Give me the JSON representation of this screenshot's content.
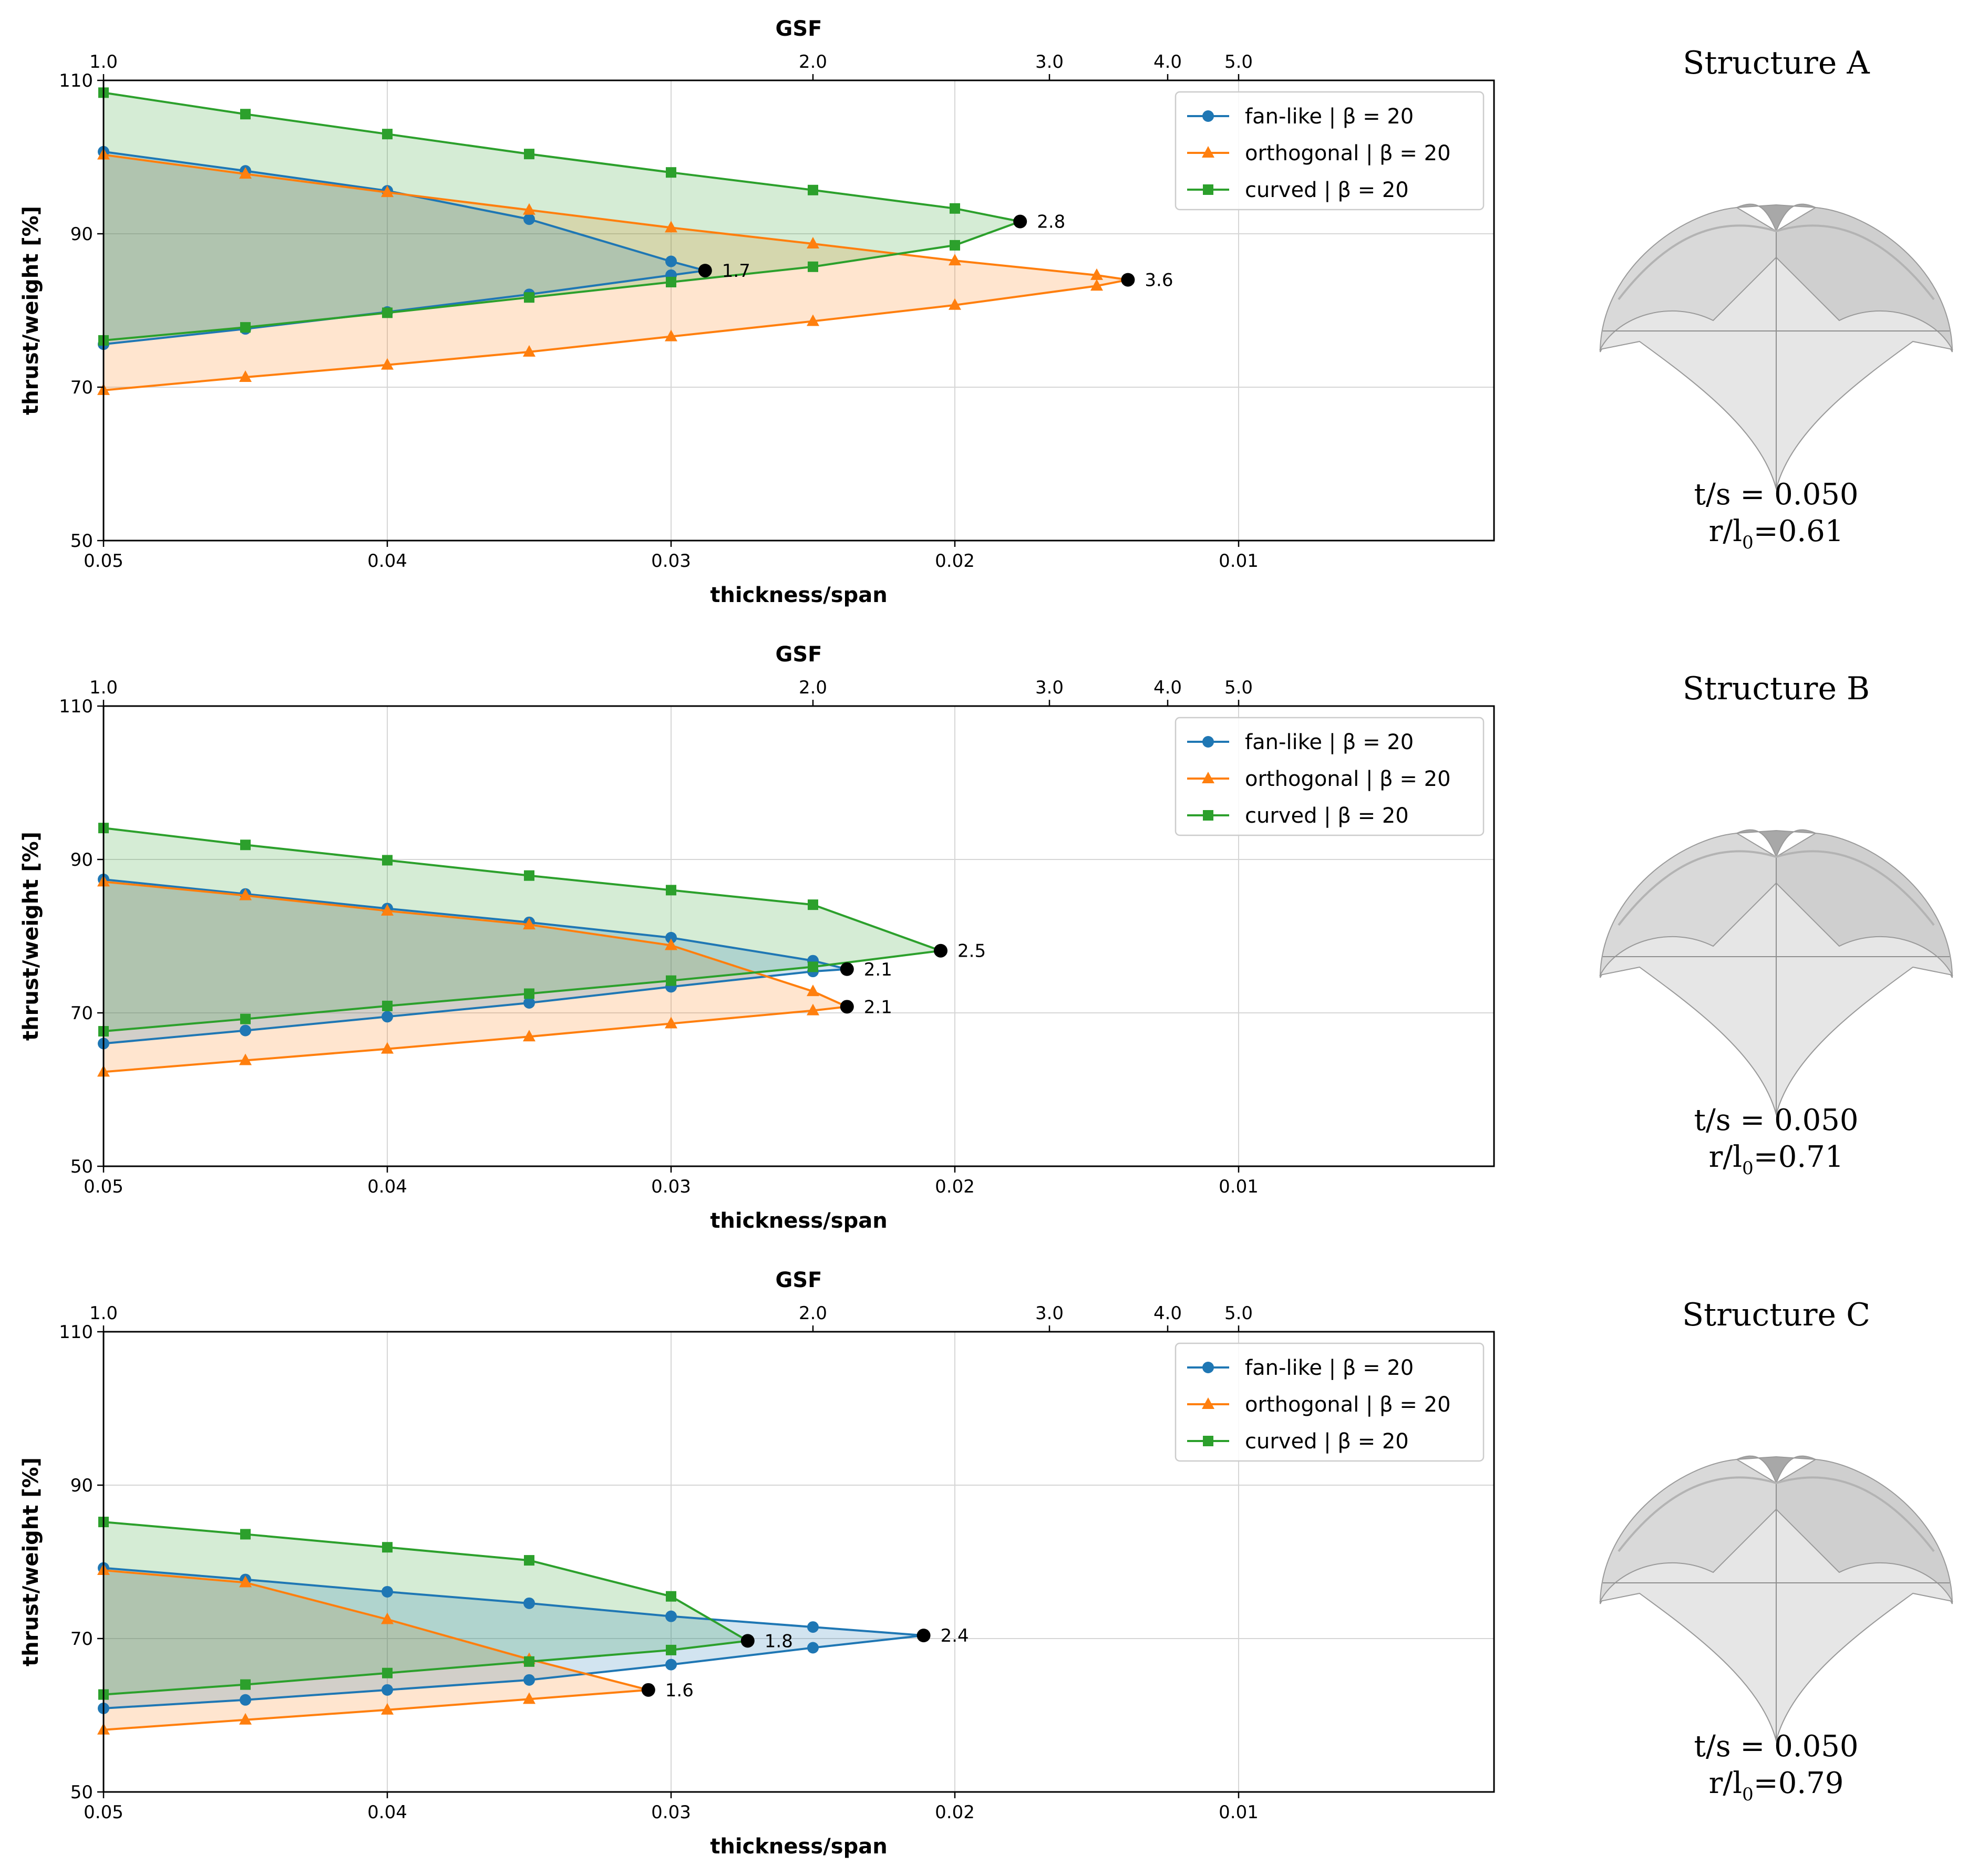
{
  "colors": {
    "fan": "#1f77b4",
    "orth": "#ff7f0e",
    "curved": "#2ca02c",
    "fan_fill": "#1f77b4",
    "orth_fill": "#ff7f0e",
    "curved_fill": "#2ca02c",
    "grid": "#d6d6d6",
    "axis": "#000000"
  },
  "chart_data": [
    {
      "type": "line",
      "title": "",
      "xlabel": "thickness/span",
      "ylabel": "thrust/weight [%]",
      "top_xlabel": "GSF",
      "xlim": [
        0.05,
        0.001
      ],
      "ylim": [
        50,
        110
      ],
      "grid": true,
      "legend": "top-right",
      "x_ticks": [
        0.05,
        0.04,
        0.03,
        0.02,
        0.01
      ],
      "x_tick_labels": [
        "0.05",
        "0.04",
        "0.03",
        "0.02",
        "0.01"
      ],
      "y_ticks": [
        50,
        70,
        90,
        110
      ],
      "y_tick_labels": [
        "50",
        "70",
        "90",
        "110"
      ],
      "top_ticks": [
        1.0,
        2.0,
        3.0,
        4.0,
        5.0
      ],
      "top_tick_labels": [
        "1.0",
        "2.0",
        "3.0",
        "4.0",
        "5.0"
      ],
      "series": [
        {
          "key": "fan",
          "name": "fan-like | β = 20",
          "marker": "circle",
          "upper": {
            "x": [
              0.05,
              0.045,
              0.04,
              0.035,
              0.03,
              0.0288
            ],
            "y": [
              100.7,
              98.2,
              95.6,
              91.9,
              86.4,
              85.2
            ]
          },
          "lower": {
            "x": [
              0.05,
              0.045,
              0.04,
              0.035,
              0.03,
              0.0288
            ],
            "y": [
              75.6,
              77.6,
              79.8,
              82.1,
              84.6,
              85.2
            ]
          },
          "limit": {
            "x": 0.0288,
            "y": 85.2,
            "label": "1.7"
          }
        },
        {
          "key": "orth",
          "name": "orthogonal | β = 20",
          "marker": "triangle",
          "upper": {
            "x": [
              0.05,
              0.045,
              0.04,
              0.035,
              0.03,
              0.025,
              0.02,
              0.015,
              0.0139
            ],
            "y": [
              100.3,
              97.8,
              95.4,
              93.1,
              90.8,
              88.7,
              86.5,
              84.6,
              84.0
            ]
          },
          "lower": {
            "x": [
              0.05,
              0.045,
              0.04,
              0.035,
              0.03,
              0.025,
              0.02,
              0.015,
              0.0139
            ],
            "y": [
              69.6,
              71.3,
              72.9,
              74.6,
              76.6,
              78.6,
              80.7,
              83.2,
              84.0
            ]
          },
          "limit": {
            "x": 0.0139,
            "y": 84.0,
            "label": "3.6"
          }
        },
        {
          "key": "curved",
          "name": "curved | β = 20",
          "marker": "square",
          "upper": {
            "x": [
              0.05,
              0.045,
              0.04,
              0.035,
              0.03,
              0.025,
              0.02,
              0.0177
            ],
            "y": [
              108.4,
              105.6,
              103.0,
              100.4,
              98.0,
              95.7,
              93.3,
              91.6
            ]
          },
          "lower": {
            "x": [
              0.05,
              0.045,
              0.04,
              0.035,
              0.03,
              0.025,
              0.02,
              0.0177
            ],
            "y": [
              76.1,
              77.8,
              79.7,
              81.7,
              83.7,
              85.7,
              88.5,
              91.6
            ]
          },
          "limit": {
            "x": 0.0177,
            "y": 91.6,
            "label": "2.8"
          }
        }
      ]
    },
    {
      "type": "line",
      "title": "",
      "xlabel": "thickness/span",
      "ylabel": "thrust/weight [%]",
      "top_xlabel": "GSF",
      "xlim": [
        0.05,
        0.001
      ],
      "ylim": [
        50,
        110
      ],
      "grid": true,
      "legend": "top-right",
      "x_ticks": [
        0.05,
        0.04,
        0.03,
        0.02,
        0.01
      ],
      "x_tick_labels": [
        "0.05",
        "0.04",
        "0.03",
        "0.02",
        "0.01"
      ],
      "y_ticks": [
        50,
        70,
        90,
        110
      ],
      "y_tick_labels": [
        "50",
        "70",
        "90",
        "110"
      ],
      "top_ticks": [
        1.0,
        2.0,
        3.0,
        4.0,
        5.0
      ],
      "top_tick_labels": [
        "1.0",
        "2.0",
        "3.0",
        "4.0",
        "5.0"
      ],
      "series": [
        {
          "key": "fan",
          "name": "fan-like | β = 20",
          "marker": "circle",
          "upper": {
            "x": [
              0.05,
              0.045,
              0.04,
              0.035,
              0.03,
              0.025,
              0.0238
            ],
            "y": [
              87.4,
              85.5,
              83.6,
              81.8,
              79.8,
              76.8,
              75.7
            ]
          },
          "lower": {
            "x": [
              0.05,
              0.045,
              0.04,
              0.035,
              0.03,
              0.025,
              0.0238
            ],
            "y": [
              66.0,
              67.7,
              69.5,
              71.3,
              73.4,
              75.4,
              75.7
            ]
          },
          "limit": {
            "x": 0.0238,
            "y": 75.7,
            "label": "2.1"
          }
        },
        {
          "key": "orth",
          "name": "orthogonal | β = 20",
          "marker": "triangle",
          "upper": {
            "x": [
              0.05,
              0.045,
              0.04,
              0.035,
              0.03,
              0.025,
              0.0238
            ],
            "y": [
              87.1,
              85.3,
              83.3,
              81.5,
              78.8,
              72.8,
              70.8
            ]
          },
          "lower": {
            "x": [
              0.05,
              0.045,
              0.04,
              0.035,
              0.03,
              0.025,
              0.0238
            ],
            "y": [
              62.3,
              63.8,
              65.3,
              66.9,
              68.6,
              70.3,
              70.8
            ]
          },
          "limit": {
            "x": 0.0238,
            "y": 70.8,
            "label": "2.1"
          }
        },
        {
          "key": "curved",
          "name": "curved | β = 20",
          "marker": "square",
          "upper": {
            "x": [
              0.05,
              0.045,
              0.04,
              0.035,
              0.03,
              0.025,
              0.0205
            ],
            "y": [
              94.1,
              91.9,
              89.9,
              87.9,
              86.0,
              84.1,
              78.1
            ]
          },
          "lower": {
            "x": [
              0.05,
              0.045,
              0.04,
              0.035,
              0.03,
              0.025,
              0.0205
            ],
            "y": [
              67.6,
              69.2,
              70.9,
              72.5,
              74.2,
              76.0,
              78.1
            ]
          },
          "limit": {
            "x": 0.0205,
            "y": 78.1,
            "label": "2.5"
          }
        }
      ]
    },
    {
      "type": "line",
      "title": "",
      "xlabel": "thickness/span",
      "ylabel": "thrust/weight [%]",
      "top_xlabel": "GSF",
      "xlim": [
        0.05,
        0.001
      ],
      "ylim": [
        50,
        110
      ],
      "grid": true,
      "legend": "top-right",
      "x_ticks": [
        0.05,
        0.04,
        0.03,
        0.02,
        0.01
      ],
      "x_tick_labels": [
        "0.05",
        "0.04",
        "0.03",
        "0.02",
        "0.01"
      ],
      "y_ticks": [
        50,
        70,
        90,
        110
      ],
      "y_tick_labels": [
        "50",
        "70",
        "90",
        "110"
      ],
      "top_ticks": [
        1.0,
        2.0,
        3.0,
        4.0,
        5.0
      ],
      "top_tick_labels": [
        "1.0",
        "2.0",
        "3.0",
        "4.0",
        "5.0"
      ],
      "series": [
        {
          "key": "fan",
          "name": "fan-like | β = 20",
          "marker": "circle",
          "upper": {
            "x": [
              0.05,
              0.045,
              0.04,
              0.035,
              0.03,
              0.025,
              0.0211
            ],
            "y": [
              79.2,
              77.7,
              76.1,
              74.6,
              72.9,
              71.5,
              70.4
            ]
          },
          "lower": {
            "x": [
              0.05,
              0.045,
              0.04,
              0.035,
              0.03,
              0.025,
              0.0211
            ],
            "y": [
              60.9,
              62.0,
              63.3,
              64.6,
              66.6,
              68.8,
              70.4
            ]
          },
          "limit": {
            "x": 0.0211,
            "y": 70.4,
            "label": "2.4"
          }
        },
        {
          "key": "orth",
          "name": "orthogonal | β = 20",
          "marker": "triangle",
          "upper": {
            "x": [
              0.05,
              0.045,
              0.04,
              0.035,
              0.0308
            ],
            "y": [
              78.9,
              77.3,
              72.5,
              67.3,
              63.3
            ]
          },
          "lower": {
            "x": [
              0.05,
              0.045,
              0.04,
              0.035,
              0.0308
            ],
            "y": [
              58.1,
              59.4,
              60.7,
              62.1,
              63.3
            ]
          },
          "limit": {
            "x": 0.0308,
            "y": 63.3,
            "label": "1.6"
          }
        },
        {
          "key": "curved",
          "name": "curved | β = 20",
          "marker": "square",
          "upper": {
            "x": [
              0.05,
              0.045,
              0.04,
              0.035,
              0.03,
              0.0273
            ],
            "y": [
              85.2,
              83.6,
              81.9,
              80.2,
              75.5,
              69.7
            ]
          },
          "lower": {
            "x": [
              0.05,
              0.045,
              0.04,
              0.035,
              0.03,
              0.0273
            ],
            "y": [
              62.7,
              64.0,
              65.5,
              67.0,
              68.5,
              69.7
            ]
          },
          "limit": {
            "x": 0.0273,
            "y": 69.7,
            "label": "1.8"
          }
        }
      ]
    }
  ],
  "structures": [
    {
      "title": "Structure A",
      "ts": "t/s = 0.050",
      "r_prefix": "r/l",
      "r_sub": "0",
      "r_value": "=0.61"
    },
    {
      "title": "Structure B",
      "ts": "t/s = 0.050",
      "r_prefix": "r/l",
      "r_sub": "0",
      "r_value": "=0.71"
    },
    {
      "title": "Structure C",
      "ts": "t/s = 0.050",
      "r_prefix": "r/l",
      "r_sub": "0",
      "r_value": "=0.79"
    }
  ]
}
